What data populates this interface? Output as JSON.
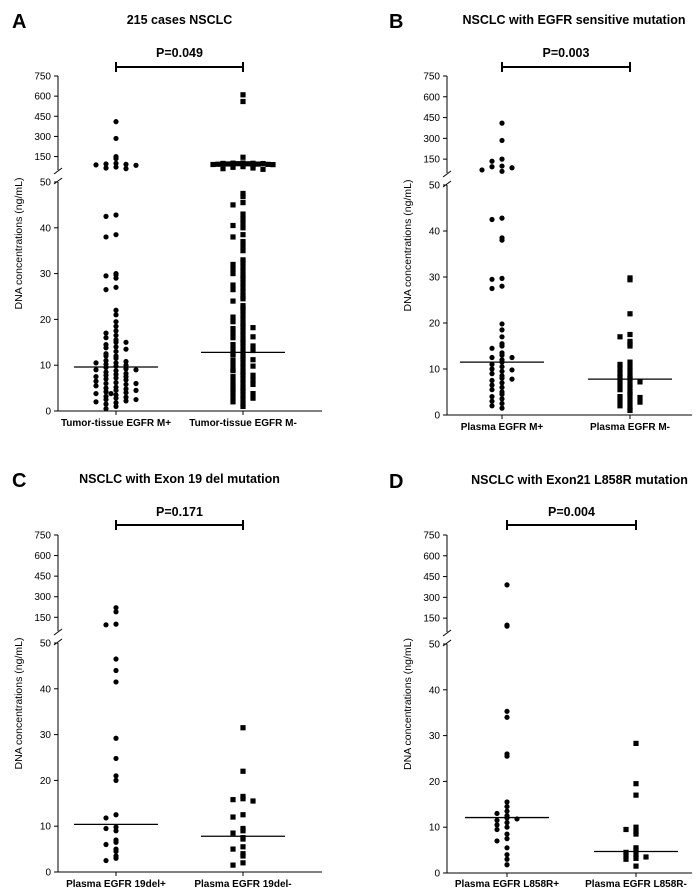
{
  "chart_data": [
    {
      "type": "scatter",
      "panel": "A",
      "title": "215 cases NSCLC",
      "ylabel": "DNA concentrations (ng/mL)",
      "p_value": "P=0.049",
      "yticks_lower": [
        "0",
        "10",
        "20",
        "30",
        "40",
        "50"
      ],
      "yticks_upper": [
        "150",
        "300",
        "450",
        "600",
        "750"
      ],
      "ylim_lower": [
        0,
        50
      ],
      "ylim_upper": [
        50,
        750
      ],
      "categories": [
        "Tumor-tissue EGFR M+",
        "Tumor-tissue EGFR M-"
      ],
      "series": [
        {
          "marker": "circle",
          "median": 9.6,
          "values": [
            410,
            285,
            150,
            135,
            100,
            95,
            92,
            88,
            85,
            72,
            65,
            60,
            42.8,
            42.5,
            38.5,
            38,
            30,
            29.7,
            29.5,
            29,
            27,
            26.5,
            22,
            21,
            19.5,
            18.5,
            17.5,
            17,
            16.5,
            16,
            15.5,
            15,
            14.5,
            14,
            13.8,
            13.5,
            13,
            12.5,
            12,
            11.5,
            11,
            10.8,
            10.5,
            10.2,
            10,
            9.8,
            9.5,
            9.2,
            9,
            8.8,
            8.5,
            8.2,
            8,
            7.8,
            7.5,
            7.2,
            7,
            6.8,
            6.5,
            6.2,
            6,
            5.8,
            5.5,
            5.2,
            5,
            4.8,
            4.5,
            4.2,
            4,
            3.8,
            3.5,
            3.2,
            3,
            2.8,
            2.5,
            2.2,
            2,
            1.8,
            1.5,
            1,
            0.5,
            6,
            9,
            12,
            15,
            4.5,
            7.5,
            10.5,
            2.5,
            3.8
          ]
        },
        {
          "marker": "square",
          "median": 12.8,
          "values": [
            610,
            560,
            145,
            102,
            101,
            100,
            99,
            98,
            97,
            96,
            95,
            94,
            93,
            92,
            91,
            90,
            88,
            85,
            80,
            75,
            70,
            65,
            60,
            55,
            47.5,
            46.8,
            45.5,
            45,
            43,
            42,
            41,
            40.5,
            40,
            38.5,
            38,
            37,
            36,
            35,
            33,
            32.5,
            32,
            31.5,
            31,
            30.5,
            30,
            29.5,
            29,
            28,
            27.5,
            27,
            26.5,
            26,
            25,
            24.5,
            24,
            23,
            22.5,
            22,
            21,
            20.5,
            20,
            19.5,
            19,
            18.5,
            18,
            17.5,
            17,
            16.5,
            16,
            15.5,
            15,
            14.5,
            14,
            13.5,
            13,
            12.5,
            12,
            11.5,
            11,
            10.5,
            10,
            9.5,
            9,
            8.5,
            8,
            7.5,
            7,
            6.5,
            6,
            5.5,
            5,
            4.5,
            4,
            3.5,
            3,
            2.5,
            2,
            1.5,
            1,
            9.8,
            8.8,
            7.8,
            6.8,
            5.8,
            4.8,
            3.8,
            2.8,
            12.2,
            14.2,
            16.2,
            18.2,
            11.2,
            13.2
          ]
        }
      ]
    },
    {
      "type": "scatter",
      "panel": "B",
      "title": "NSCLC with EGFR sensitive mutation",
      "ylabel": "DNA concentrations (ng/mL)",
      "p_value": "P=0.003",
      "yticks_lower": [
        "0",
        "10",
        "20",
        "30",
        "40",
        "50"
      ],
      "yticks_upper": [
        "150",
        "300",
        "450",
        "600",
        "750"
      ],
      "ylim_lower": [
        0,
        50
      ],
      "ylim_upper": [
        50,
        750
      ],
      "categories": [
        "Plasma EGFR M+",
        "Plasma EGFR M-"
      ],
      "series": [
        {
          "marker": "circle",
          "median": 11.5,
          "values": [
            410,
            285,
            150,
            135,
            100,
            95,
            88,
            72,
            62,
            42.8,
            42.5,
            38.5,
            38,
            29.7,
            29.5,
            28,
            27.5,
            19.8,
            18.5,
            17,
            15.5,
            15,
            14.5,
            13.5,
            13,
            12.5,
            12,
            11.5,
            11,
            10.5,
            10,
            9.5,
            9,
            8.5,
            8,
            7.5,
            7,
            6.5,
            6,
            5.5,
            5,
            4.5,
            4,
            3.5,
            3,
            2.5,
            2,
            1.5,
            12.5,
            9.8,
            7.8
          ]
        },
        {
          "marker": "square",
          "median": 7.8,
          "values": [
            29.8,
            29.4,
            22,
            17.5,
            17,
            16,
            15.5,
            15,
            11.5,
            11,
            10.5,
            10,
            9.5,
            9,
            8.5,
            8,
            7.5,
            7,
            6.5,
            6,
            5.5,
            5,
            4.5,
            4,
            3.5,
            3,
            2.5,
            2,
            1.5,
            1,
            8.2,
            7.2,
            3.8,
            2.8
          ]
        }
      ]
    },
    {
      "type": "scatter",
      "panel": "C",
      "title": "NSCLC with Exon 19 del mutation",
      "ylabel": "DNA concentrations (ng/mL)",
      "p_value": "P=0.171",
      "yticks_lower": [
        "0",
        "10",
        "20",
        "30",
        "40",
        "50"
      ],
      "yticks_upper": [
        "150",
        "300",
        "450",
        "600",
        "750"
      ],
      "ylim_lower": [
        0,
        50
      ],
      "ylim_upper": [
        50,
        750
      ],
      "categories": [
        "Plasma EGFR 19del+",
        "Plasma EGFR 19del-"
      ],
      "series": [
        {
          "marker": "circle",
          "median": 10.4,
          "values": [
            220,
            190,
            100,
            95,
            46.5,
            44,
            41.5,
            29.2,
            24.8,
            21,
            20,
            12.5,
            11.8,
            9.8,
            9.5,
            7,
            6.5,
            5,
            4.5,
            3.5,
            3,
            2.5,
            9,
            6
          ]
        },
        {
          "marker": "square",
          "median": 7.8,
          "values": [
            31.5,
            22,
            16.5,
            16,
            15.8,
            15.5,
            12.5,
            12,
            9.5,
            9,
            8.5,
            7.5,
            7.2,
            5.5,
            5,
            4,
            3.5,
            2,
            1.5
          ]
        }
      ]
    },
    {
      "type": "scatter",
      "panel": "D",
      "title": "NSCLC with Exon21 L858R mutation",
      "ylabel": "DNA concentrations (ng/mL)",
      "p_value": "P=0.004",
      "yticks_lower": [
        "0",
        "10",
        "20",
        "30",
        "40",
        "50"
      ],
      "yticks_upper": [
        "150",
        "300",
        "450",
        "600",
        "750"
      ],
      "ylim_lower": [
        0,
        50
      ],
      "ylim_upper": [
        50,
        750
      ],
      "categories": [
        "Plasma EGFR L858R+",
        "Plasma EGFR L858R-"
      ],
      "series": [
        {
          "marker": "circle",
          "median": 12.1,
          "values": [
            390,
            100,
            92,
            35.3,
            34,
            26,
            25.5,
            15.5,
            14.5,
            13.5,
            13,
            12.5,
            12,
            11.5,
            11,
            10,
            9.5,
            8.5,
            7.5,
            7,
            5.5,
            4,
            3,
            1.8,
            11.8,
            10.5
          ]
        },
        {
          "marker": "square",
          "median": 4.7,
          "values": [
            28.3,
            19.5,
            17,
            10,
            9.5,
            9,
            8.5,
            5.5,
            5,
            4.5,
            4,
            3.8,
            3.5,
            3.2,
            3,
            1.5
          ]
        }
      ]
    }
  ]
}
